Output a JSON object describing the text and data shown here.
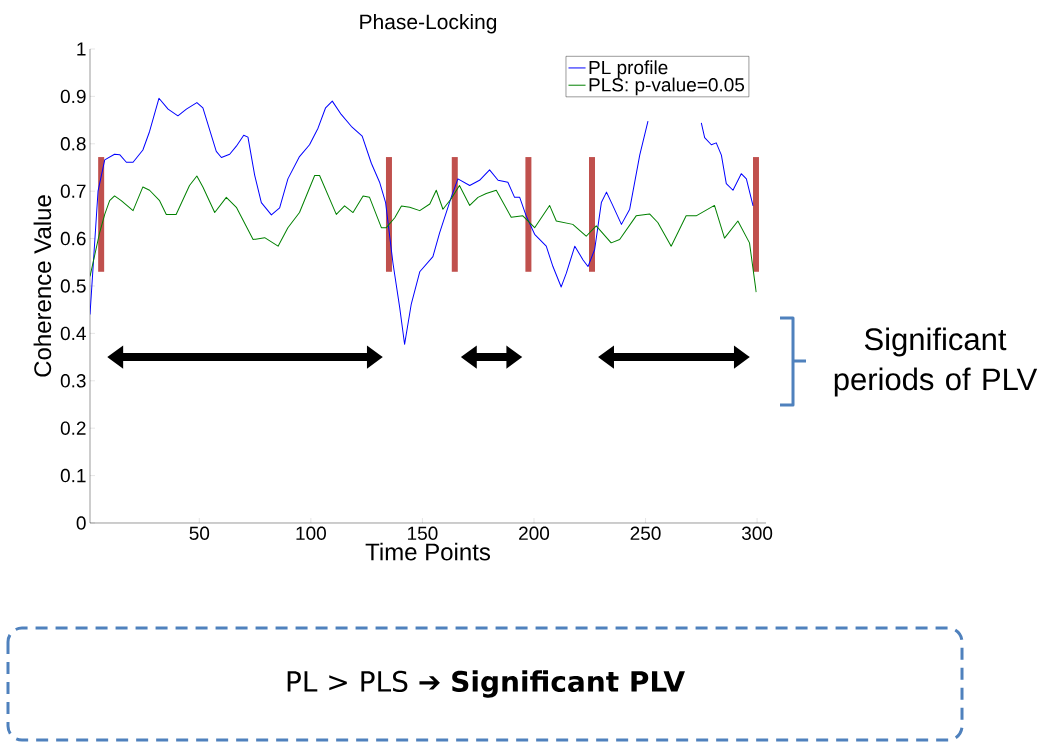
{
  "chart_data": {
    "type": "line",
    "title": "Phase-Locking",
    "xlabel": "Time Points",
    "ylabel": "Coherence Value",
    "xlim": [
      1,
      304
    ],
    "ylim": [
      0,
      1
    ],
    "xticks": [
      50,
      100,
      150,
      200,
      250,
      300
    ],
    "yticks": [
      0,
      0.1,
      0.2,
      0.3,
      0.4,
      0.5,
      0.6,
      0.7,
      0.8,
      0.9,
      1
    ],
    "legend": "top right",
    "series": [
      {
        "name": "PL profile",
        "color": "#0000ff",
        "x": [
          1,
          4.6,
          7.6,
          12,
          14.3,
          17.3,
          20.3,
          24.7,
          27.7,
          31.9,
          36,
          40.4,
          44.2,
          48.9,
          51.6,
          57.6,
          59.9,
          63.6,
          66.6,
          69.9,
          71.8,
          74.8,
          77.8,
          82.3,
          86,
          89.7,
          94.9,
          99.4,
          103.2,
          106.6,
          109.6,
          113.6,
          118.1,
          123,
          127.1,
          130.8,
          133.5,
          136.8,
          139.8,
          142,
          145,
          148.8,
          154.7,
          157.7,
          162.9,
          165.9,
          171.2,
          175.6,
          180.1,
          183.9,
          188.3,
          191.3,
          193.6,
          196.5,
          200.3,
          205.5,
          208.5,
          212.2,
          214.5,
          218.3,
          222,
          224.2,
          227.2,
          230.2,
          232.5,
          235.4,
          239.2,
          242.9,
          247.4,
          251.1,
          263,
          275,
          276.5,
          279.5,
          281.7,
          284,
          286.2,
          289.2,
          292.9,
          295.2,
          298.2
        ],
        "values": [
          0.44,
          0.7,
          0.766,
          0.778,
          0.777,
          0.761,
          0.761,
          0.787,
          0.826,
          0.896,
          0.873,
          0.859,
          0.873,
          0.887,
          0.876,
          0.784,
          0.771,
          0.778,
          0.795,
          0.818,
          0.814,
          0.734,
          0.676,
          0.65,
          0.665,
          0.726,
          0.773,
          0.798,
          0.833,
          0.876,
          0.89,
          0.862,
          0.837,
          0.816,
          0.759,
          0.719,
          0.676,
          0.548,
          0.455,
          0.377,
          0.462,
          0.53,
          0.562,
          0.612,
          0.687,
          0.726,
          0.712,
          0.723,
          0.745,
          0.723,
          0.719,
          0.687,
          0.687,
          0.648,
          0.609,
          0.584,
          0.541,
          0.498,
          0.527,
          0.584,
          0.555,
          0.541,
          0.577,
          0.676,
          0.698,
          0.669,
          0.63,
          0.662,
          0.776,
          0.848,
          null,
          0.844,
          0.813,
          0.798,
          0.802,
          0.776,
          0.716,
          0.702,
          0.737,
          0.726,
          0.669
        ]
      },
      {
        "name": "PLS: p-value=0.05",
        "color": "#008000",
        "x": [
          1,
          5.3,
          7.6,
          9.8,
          12,
          15,
          20.3,
          24.7,
          27.7,
          32.2,
          35.2,
          39.6,
          45.6,
          48.9,
          51.6,
          56.9,
          62.1,
          66.6,
          74.1,
          79.3,
          85.3,
          89.7,
          94.9,
          101.7,
          103.9,
          111.4,
          115.1,
          118.9,
          123.4,
          126.3,
          131.6,
          133.8,
          137.6,
          140.6,
          144.3,
          148.8,
          153.3,
          156.2,
          159.2,
          162.9,
          166.6,
          171.2,
          174.9,
          178.6,
          183.1,
          189.8,
          195,
          200.3,
          207,
          210,
          217.4,
          223.4,
          227.9,
          234.6,
          238.4,
          245.8,
          251.8,
          255.5,
          261.5,
          268.2,
          272.7,
          280.9,
          285.4,
          291.4,
          296.6,
          299.6
        ],
        "values": [
          0.52,
          0.612,
          0.651,
          0.68,
          0.69,
          0.68,
          0.659,
          0.709,
          0.702,
          0.68,
          0.651,
          0.651,
          0.712,
          0.732,
          0.709,
          0.655,
          0.687,
          0.666,
          0.598,
          0.602,
          0.584,
          0.623,
          0.655,
          0.733,
          0.733,
          0.651,
          0.669,
          0.655,
          0.69,
          0.687,
          0.623,
          0.623,
          0.644,
          0.669,
          0.666,
          0.659,
          0.673,
          0.702,
          0.662,
          0.684,
          0.712,
          0.67,
          0.687,
          0.695,
          0.702,
          0.645,
          0.648,
          0.623,
          0.67,
          0.637,
          0.63,
          0.605,
          0.627,
          0.591,
          0.598,
          0.648,
          0.652,
          0.634,
          0.584,
          0.648,
          0.648,
          0.67,
          0.601,
          0.637,
          0.591,
          0.487
        ]
      }
    ],
    "ref_lines": [
      {
        "axis": "x",
        "value": 6,
        "color": "#c0504d"
      },
      {
        "axis": "x",
        "value": 135,
        "color": "#c0504d"
      },
      {
        "axis": "x",
        "value": 164.5,
        "color": "#c0504d"
      },
      {
        "axis": "x",
        "value": 197.5,
        "color": "#c0504d"
      },
      {
        "axis": "x",
        "value": 226,
        "color": "#c0504d"
      },
      {
        "axis": "x",
        "value": 299.5,
        "color": "#c0504d"
      }
    ],
    "annotations": [
      "Significant periods of PLV",
      "PL > PLS ➔ **Significant PLV**"
    ]
  }
}
